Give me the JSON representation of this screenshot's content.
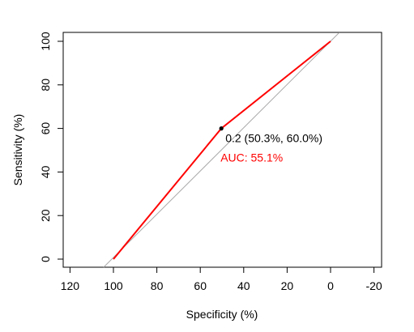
{
  "chart_data": {
    "type": "line",
    "title": "",
    "xlabel": "Specificity (%)",
    "ylabel": "Sensitivity (%)",
    "x_reversed": true,
    "xlim": [
      120,
      -20
    ],
    "ylim": [
      0,
      100
    ],
    "xticks": [
      120,
      100,
      80,
      60,
      40,
      20,
      0,
      -20
    ],
    "yticks": [
      0,
      20,
      40,
      60,
      80,
      100
    ],
    "grid": false,
    "series": [
      {
        "color": "#ff0000",
        "x": [
          100,
          50.3,
          0
        ],
        "y": [
          0,
          60.0,
          100
        ]
      }
    ],
    "reference_line": {
      "color": "#aaaaaa",
      "x": [
        100,
        0
      ],
      "y": [
        0,
        100
      ]
    },
    "threshold_point": {
      "x": 50.3,
      "y": 60.0,
      "label": "0.2 (50.3%, 60.0%)",
      "color": "#000000"
    },
    "auc_label": {
      "text": "AUC: 55.1%",
      "color": "#ff0000"
    }
  }
}
